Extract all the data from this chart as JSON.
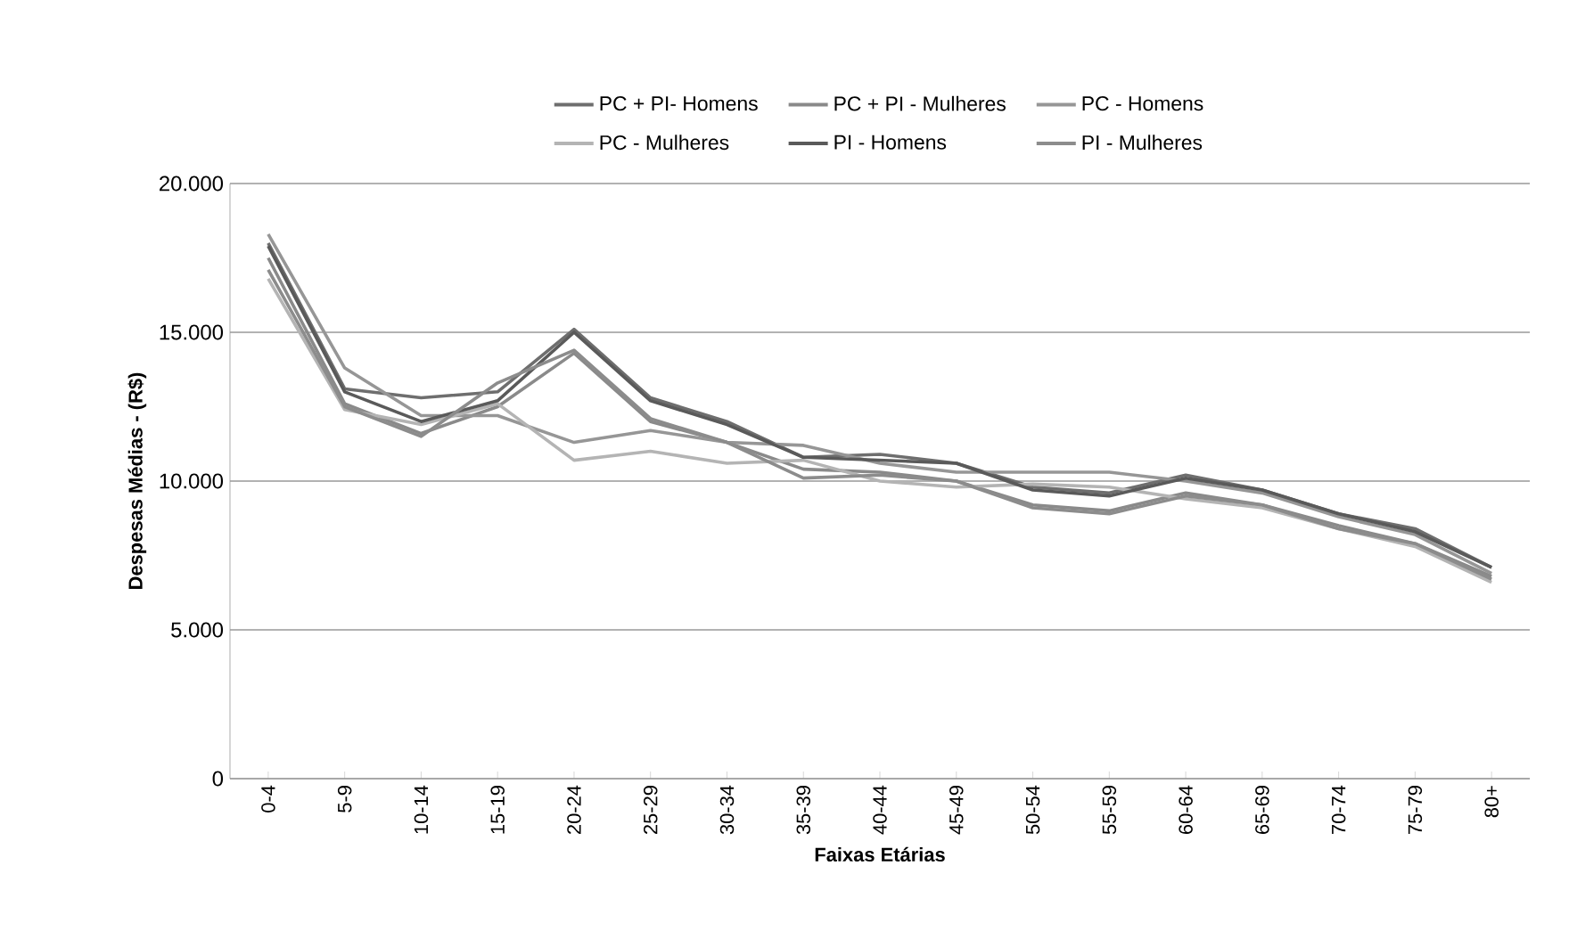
{
  "chart_data": {
    "type": "line",
    "xlabel": "Faixas Etárias",
    "ylabel": "Despesas Médias - (R$)",
    "categories": [
      "0-4",
      "5-9",
      "10-14",
      "15-19",
      "20-24",
      "25-29",
      "30-34",
      "35-39",
      "40-44",
      "45-49",
      "50-54",
      "55-59",
      "60-64",
      "65-69",
      "70-74",
      "75-79",
      "80+"
    ],
    "series": [
      {
        "name": "PC + PI- Homens",
        "color": "#6e6e6e",
        "values": [
          18000,
          13100,
          12800,
          13000,
          15100,
          12800,
          12000,
          10800,
          10900,
          10600,
          9800,
          9600,
          10200,
          9700,
          8900,
          8400,
          7100
        ]
      },
      {
        "name": "PC + PI - Mulheres",
        "color": "#8a8a8a",
        "values": [
          17500,
          12600,
          11600,
          12500,
          14300,
          12000,
          11300,
          10400,
          10300,
          10000,
          9200,
          9000,
          9600,
          9200,
          8500,
          7900,
          6800
        ]
      },
      {
        "name": "PC - Homens",
        "color": "#969696",
        "values": [
          18300,
          13800,
          12200,
          12200,
          11300,
          11700,
          11300,
          11200,
          10600,
          10300,
          10300,
          10300,
          10000,
          9600,
          8800,
          8200,
          6900
        ]
      },
      {
        "name": "PC - Mulheres",
        "color": "#b4b4b4",
        "values": [
          16800,
          12400,
          11900,
          12600,
          10700,
          11000,
          10600,
          10700,
          10000,
          9800,
          9900,
          9800,
          9400,
          9100,
          8400,
          7800,
          6600
        ]
      },
      {
        "name": "PI - Homens",
        "color": "#5a5a5a",
        "values": [
          17900,
          13000,
          12000,
          12700,
          15000,
          12700,
          11900,
          10800,
          10700,
          10600,
          9700,
          9500,
          10100,
          9700,
          8900,
          8300,
          7100
        ]
      },
      {
        "name": "PI - Mulheres",
        "color": "#8c8c8c",
        "values": [
          17100,
          12500,
          11500,
          13300,
          14400,
          12100,
          11300,
          10100,
          10200,
          10000,
          9100,
          8900,
          9500,
          9200,
          8400,
          7900,
          6700
        ]
      }
    ],
    "ylim": [
      0,
      20000
    ],
    "yticks": [
      {
        "value": 0,
        "label": "0"
      },
      {
        "value": 5000,
        "label": "5.000"
      },
      {
        "value": 10000,
        "label": "10.000"
      },
      {
        "value": 15000,
        "label": "15.000"
      },
      {
        "value": 20000,
        "label": "20.000"
      }
    ],
    "grid": "y",
    "legend": "top",
    "marker": "none",
    "line_style": "solid"
  }
}
